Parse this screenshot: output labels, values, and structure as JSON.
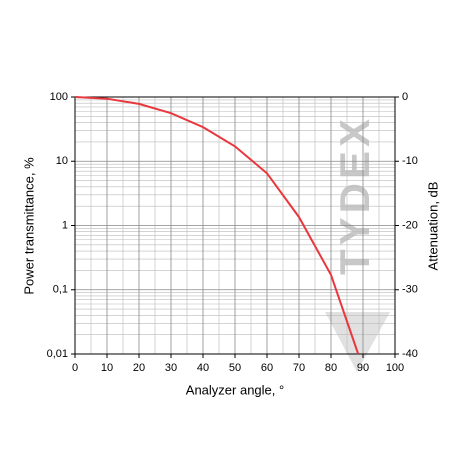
{
  "chart_data": {
    "type": "line",
    "x_label": "Analyzer angle, °",
    "y_label": "Power transmittance, %",
    "y2_label": "Attenuation, dB",
    "watermark": "TYDEX",
    "series": [
      {
        "name": "Power transmittance",
        "color": "#e8383d",
        "x": [
          0,
          10,
          20,
          30,
          40,
          50,
          60,
          70,
          80,
          88.5
        ],
        "values": [
          100,
          94,
          78,
          56,
          34,
          17,
          6.5,
          1.35,
          0.17,
          0.01
        ]
      }
    ],
    "xlim": [
      0,
      100
    ],
    "xticks": [
      0,
      10,
      20,
      30,
      40,
      50,
      60,
      70,
      80,
      90,
      100
    ],
    "ylim": [
      0.01,
      100
    ],
    "log_y": true,
    "yticks": [
      {
        "value": 0.01,
        "label": "0,01"
      },
      {
        "value": 0.1,
        "label": "0,1"
      },
      1,
      10,
      100
    ],
    "y2lim": [
      -40,
      0
    ],
    "y2ticks": [
      -40,
      -30,
      -20,
      -10,
      0
    ],
    "grid": true,
    "minor_grid": true
  }
}
